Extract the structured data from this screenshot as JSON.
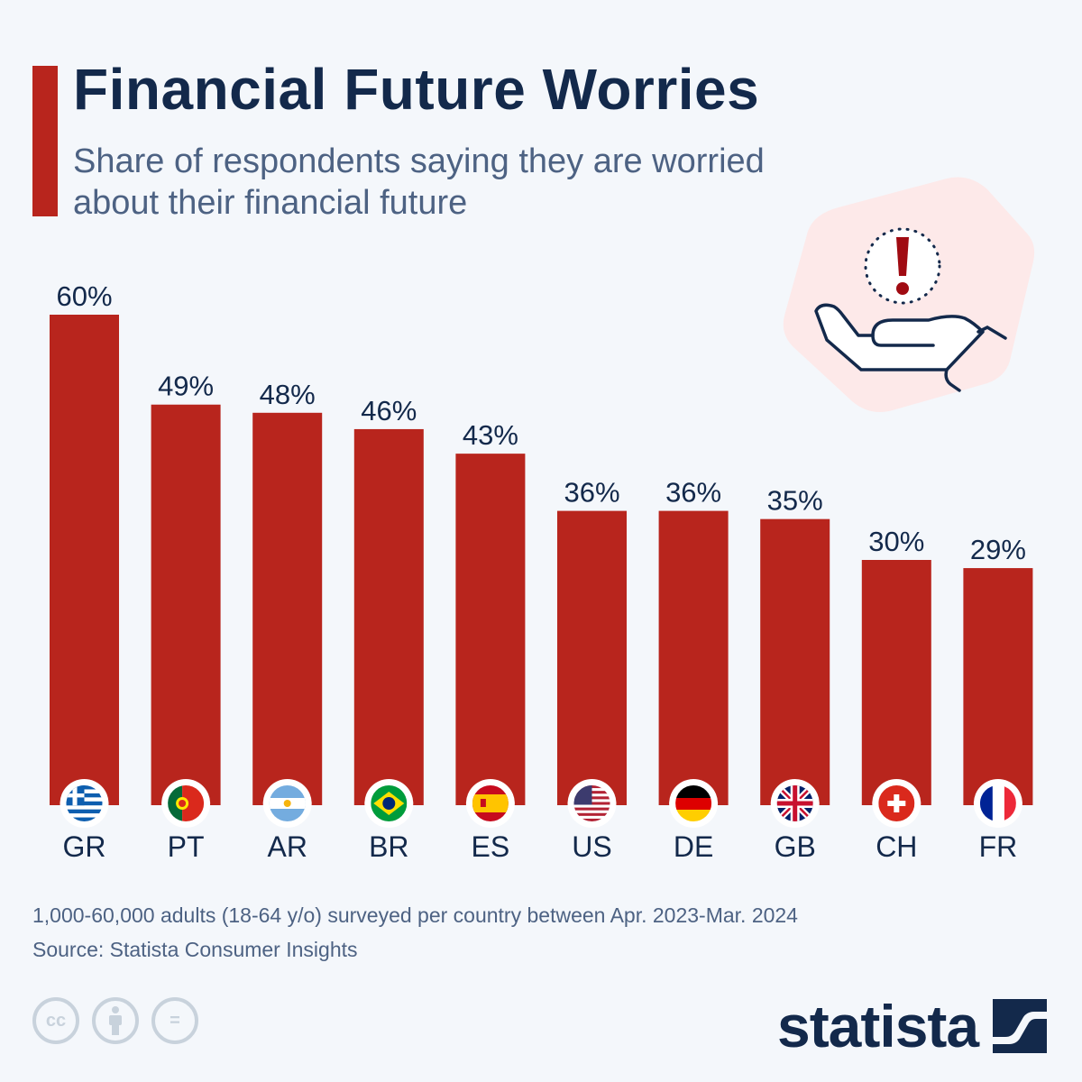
{
  "header": {
    "title": "Financial Future Worries",
    "subtitle": "Share of respondents saying they are worried about their financial future"
  },
  "colors": {
    "bar": "#b8251d",
    "title": "#13294b",
    "subtitle": "#4d6283",
    "background": "#f4f7fb",
    "illustration_bg": "#fde9e9"
  },
  "illustration": {
    "icon": "hand-with-exclamation-icon"
  },
  "chart_data": {
    "type": "bar",
    "title": "Financial Future Worries",
    "subtitle": "Share of respondents saying they are worried about their financial future",
    "categories": [
      "GR",
      "PT",
      "AR",
      "BR",
      "ES",
      "US",
      "DE",
      "GB",
      "CH",
      "FR"
    ],
    "values": [
      60,
      49,
      48,
      46,
      43,
      36,
      36,
      35,
      30,
      29
    ],
    "data_labels": [
      "60%",
      "49%",
      "48%",
      "46%",
      "43%",
      "36%",
      "36%",
      "35%",
      "30%",
      "29%"
    ],
    "unit": "%",
    "ylim": [
      0,
      60
    ],
    "grid": false,
    "legend": "none",
    "category_icons": [
      "flag-greece",
      "flag-portugal",
      "flag-argentina",
      "flag-brazil",
      "flag-spain",
      "flag-usa",
      "flag-germany",
      "flag-uk",
      "flag-switzerland",
      "flag-france"
    ]
  },
  "footer": {
    "note": "1,000-60,000 adults (18-64 y/o) surveyed per country between Apr. 2023-Mar. 2024",
    "source": "Source: Statista Consumer Insights",
    "license_icons": [
      "cc-icon",
      "attribution-icon",
      "no-derivatives-icon"
    ],
    "license_glyphs": [
      "cc",
      "",
      "="
    ],
    "logo": "statista"
  }
}
